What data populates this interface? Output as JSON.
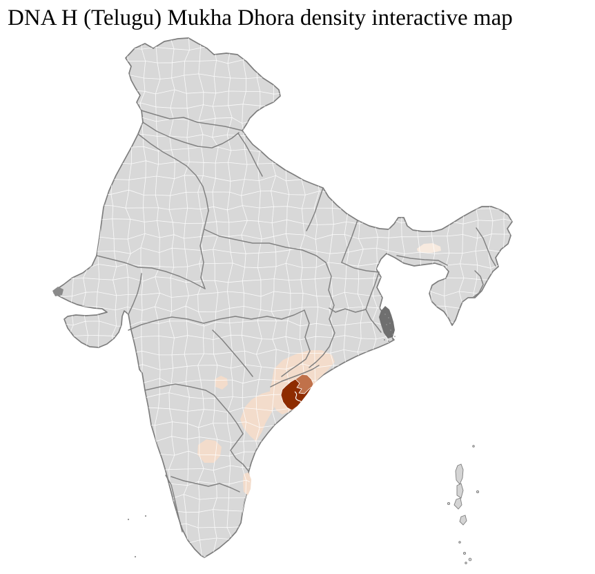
{
  "title": "DNA H (Telugu) Mukha Dhora density interactive map",
  "map": {
    "label": "India district-level density choropleth",
    "colors": {
      "background": "#ffffff",
      "land": "#d8d8d8",
      "border": "#7d7d7d",
      "district_line": "#ffffff",
      "density_highest": "#8e2c00",
      "density_high": "#c0714a",
      "density_low": "#f3dccb",
      "density_trace": "#f7eadf",
      "delta_marsh": "#6f6f6f",
      "island": "#d4d4d4",
      "islet": "#8f8f8f"
    },
    "highlights": [
      {
        "level": "highest",
        "color": "#8e2c00"
      },
      {
        "level": "high",
        "color": "#c0714a"
      },
      {
        "level": "low",
        "color": "#f3dccb"
      },
      {
        "level": "trace",
        "color": "#f7eadf"
      }
    ]
  }
}
